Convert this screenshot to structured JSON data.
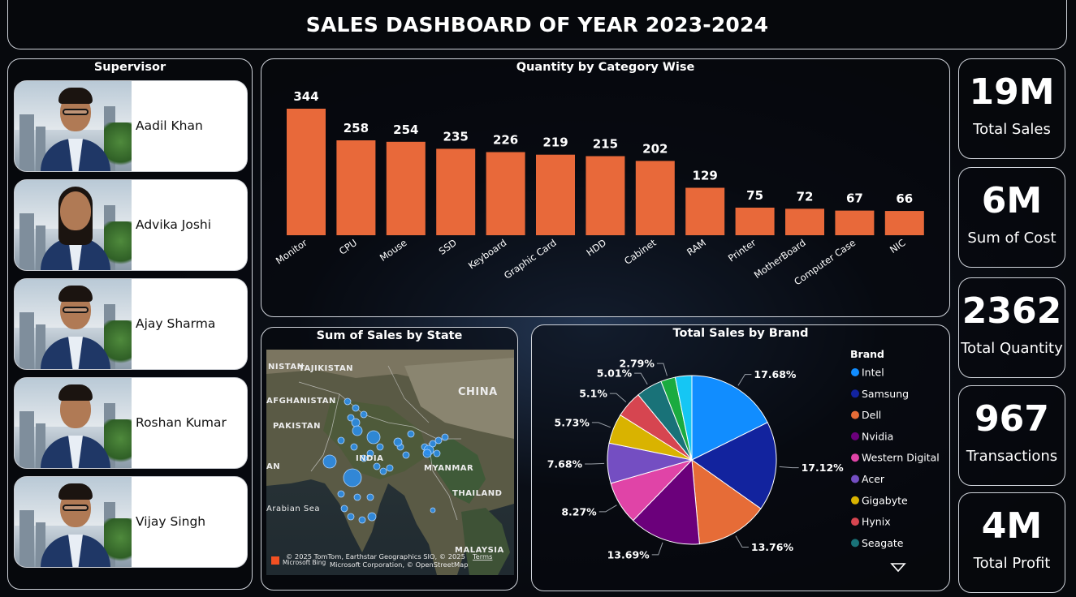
{
  "title": "SALES DASHBOARD OF YEAR 2023-2024",
  "supervisor": {
    "title": "Supervisor",
    "people": [
      {
        "name": "Aadil Khan"
      },
      {
        "name": "Advika Joshi"
      },
      {
        "name": "Ajay Sharma"
      },
      {
        "name": "Roshan Kumar"
      },
      {
        "name": "Vijay Singh"
      }
    ]
  },
  "map": {
    "title": "Sum of Sales by State",
    "labels": [
      "NISTAN",
      "TAJIKISTAN",
      "AFGHANISTAN",
      "PAKISTAN",
      "CHINA",
      "INDIA",
      "MYANMAR",
      "THAILAND",
      "Arabian Sea",
      "MALAYSIA",
      "AN"
    ],
    "attribution_1": "© 2025 TomTom, Earthstar Geographics SIO, © 2025",
    "attribution_terms": "Terms",
    "attribution_2": "Microsoft Corporation, © OpenStreetMap",
    "bing_label": "Microsoft Bing"
  },
  "kpis": [
    {
      "value": "19M",
      "label": "Total Sales"
    },
    {
      "value": "6M",
      "label": "Sum of Cost"
    },
    {
      "value": "2362",
      "label": "Total Quantity"
    },
    {
      "value": "967",
      "label": "Transactions"
    },
    {
      "value": "4M",
      "label": "Total Profit"
    }
  ],
  "colors": {
    "bar": "#e8693a"
  },
  "chart_data": [
    {
      "type": "bar",
      "title": "Quantity by Category Wise",
      "categories": [
        "Monitor",
        "CPU",
        "Mouse",
        "SSD",
        "Keyboard",
        "Graphic Card",
        "HDD",
        "Cabinet",
        "RAM",
        "Printer",
        "MotherBoard",
        "Computer Case",
        "NIC"
      ],
      "values": [
        344,
        258,
        254,
        235,
        226,
        219,
        215,
        202,
        129,
        75,
        72,
        67,
        66
      ],
      "data_labels": true,
      "grid": false
    },
    {
      "type": "pie",
      "title": "Total Sales by Brand",
      "legend_title": "Brand",
      "legend_position": "right",
      "slices": [
        {
          "name": "Intel",
          "value": 17.68,
          "label": "17.68%",
          "color": "#118dff"
        },
        {
          "name": "Samsung",
          "value": 17.12,
          "label": "17.12%",
          "color": "#12239e"
        },
        {
          "name": "Dell",
          "value": 13.76,
          "label": "13.76%",
          "color": "#e66c37"
        },
        {
          "name": "Nvidia",
          "value": 13.69,
          "label": "13.69%",
          "color": "#6b007b"
        },
        {
          "name": "Western Digital",
          "value": 8.27,
          "label": "8.27%",
          "color": "#e044a7"
        },
        {
          "name": "Acer",
          "value": 7.68,
          "label": "7.68%",
          "color": "#744ec2"
        },
        {
          "name": "Gigabyte",
          "value": 5.73,
          "label": "5.73%",
          "color": "#d9b300"
        },
        {
          "name": "Hynix",
          "value": 5.1,
          "label": "5.1%",
          "color": "#d64550"
        },
        {
          "name": "Seagate",
          "value": 5.01,
          "label": "5.01%",
          "color": "#197278"
        },
        {
          "name": "",
          "value": 2.79,
          "label": "2.79%",
          "color": "#1aab40"
        },
        {
          "name": "",
          "value": 3.17,
          "label": "",
          "color": "#15c6f4"
        }
      ],
      "legend_items": [
        "Intel",
        "Samsung",
        "Dell",
        "Nvidia",
        "Western Digital",
        "Acer",
        "Gigabyte",
        "Hynix",
        "Seagate"
      ]
    }
  ]
}
